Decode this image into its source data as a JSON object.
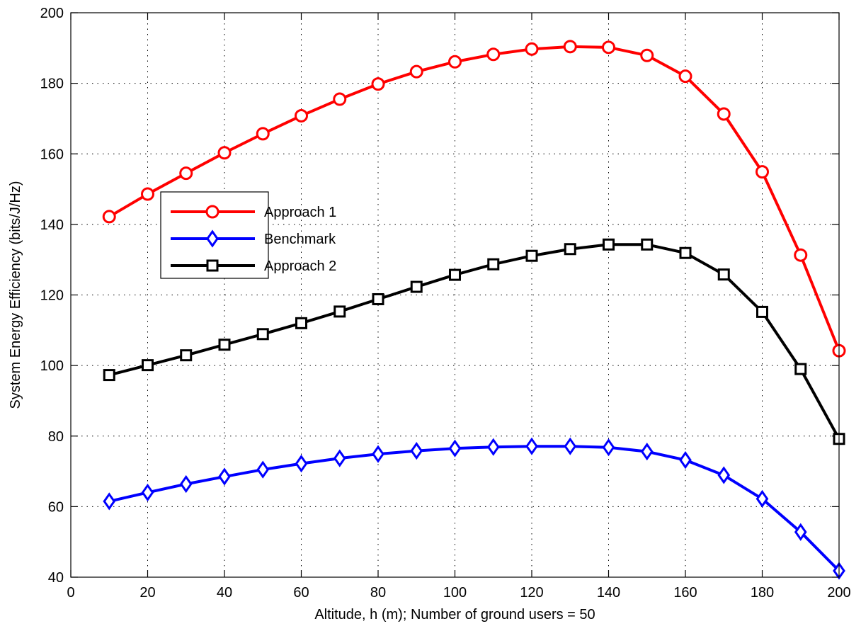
{
  "chart_data": {
    "type": "line",
    "title": "",
    "xlabel": "Altitude, h (m); Number of ground users = 50",
    "ylabel": "System Energy Efficiency (bits/J/Hz)",
    "xlim": [
      0,
      200
    ],
    "ylim": [
      40,
      200
    ],
    "xticks": [
      0,
      20,
      40,
      60,
      80,
      100,
      120,
      140,
      160,
      180,
      200
    ],
    "yticks": [
      40,
      60,
      80,
      100,
      120,
      140,
      160,
      180,
      200
    ],
    "x_tick_labels": [
      "0",
      "20",
      "40",
      "60",
      "80",
      "100",
      "120",
      "140",
      "160",
      "180",
      "200"
    ],
    "y_tick_labels": [
      "40",
      "60",
      "80",
      "100",
      "120",
      "140",
      "160",
      "180",
      "200"
    ],
    "grid": true,
    "grid_style": "dotted",
    "legend_position": "upper-left",
    "x": [
      10,
      20,
      30,
      40,
      50,
      60,
      70,
      80,
      90,
      100,
      110,
      120,
      130,
      140,
      150,
      160,
      170,
      180,
      190,
      200
    ],
    "series": [
      {
        "name": "Approach 1",
        "color": "#ff0000",
        "marker": "circle",
        "values": [
          142.2,
          148.6,
          154.5,
          160.3,
          165.7,
          170.8,
          175.5,
          179.8,
          183.3,
          186.1,
          188.2,
          189.7,
          190.4,
          190.2,
          187.9,
          182.0,
          171.3,
          154.9,
          131.3,
          104.2
        ]
      },
      {
        "name": "Benchmark",
        "color": "#0000ff",
        "marker": "diamond",
        "values": [
          61.5,
          64.0,
          66.4,
          68.5,
          70.5,
          72.2,
          73.7,
          74.9,
          75.8,
          76.5,
          76.9,
          77.1,
          77.1,
          76.8,
          75.6,
          73.2,
          68.9,
          62.2,
          52.8,
          41.8
        ]
      },
      {
        "name": "Approach 2",
        "color": "#000000",
        "marker": "square",
        "values": [
          97.3,
          100.1,
          102.9,
          105.9,
          108.9,
          112.0,
          115.3,
          118.8,
          122.3,
          125.7,
          128.7,
          131.1,
          133.0,
          134.3,
          134.3,
          131.9,
          125.8,
          115.2,
          99.0,
          79.2
        ]
      }
    ]
  }
}
